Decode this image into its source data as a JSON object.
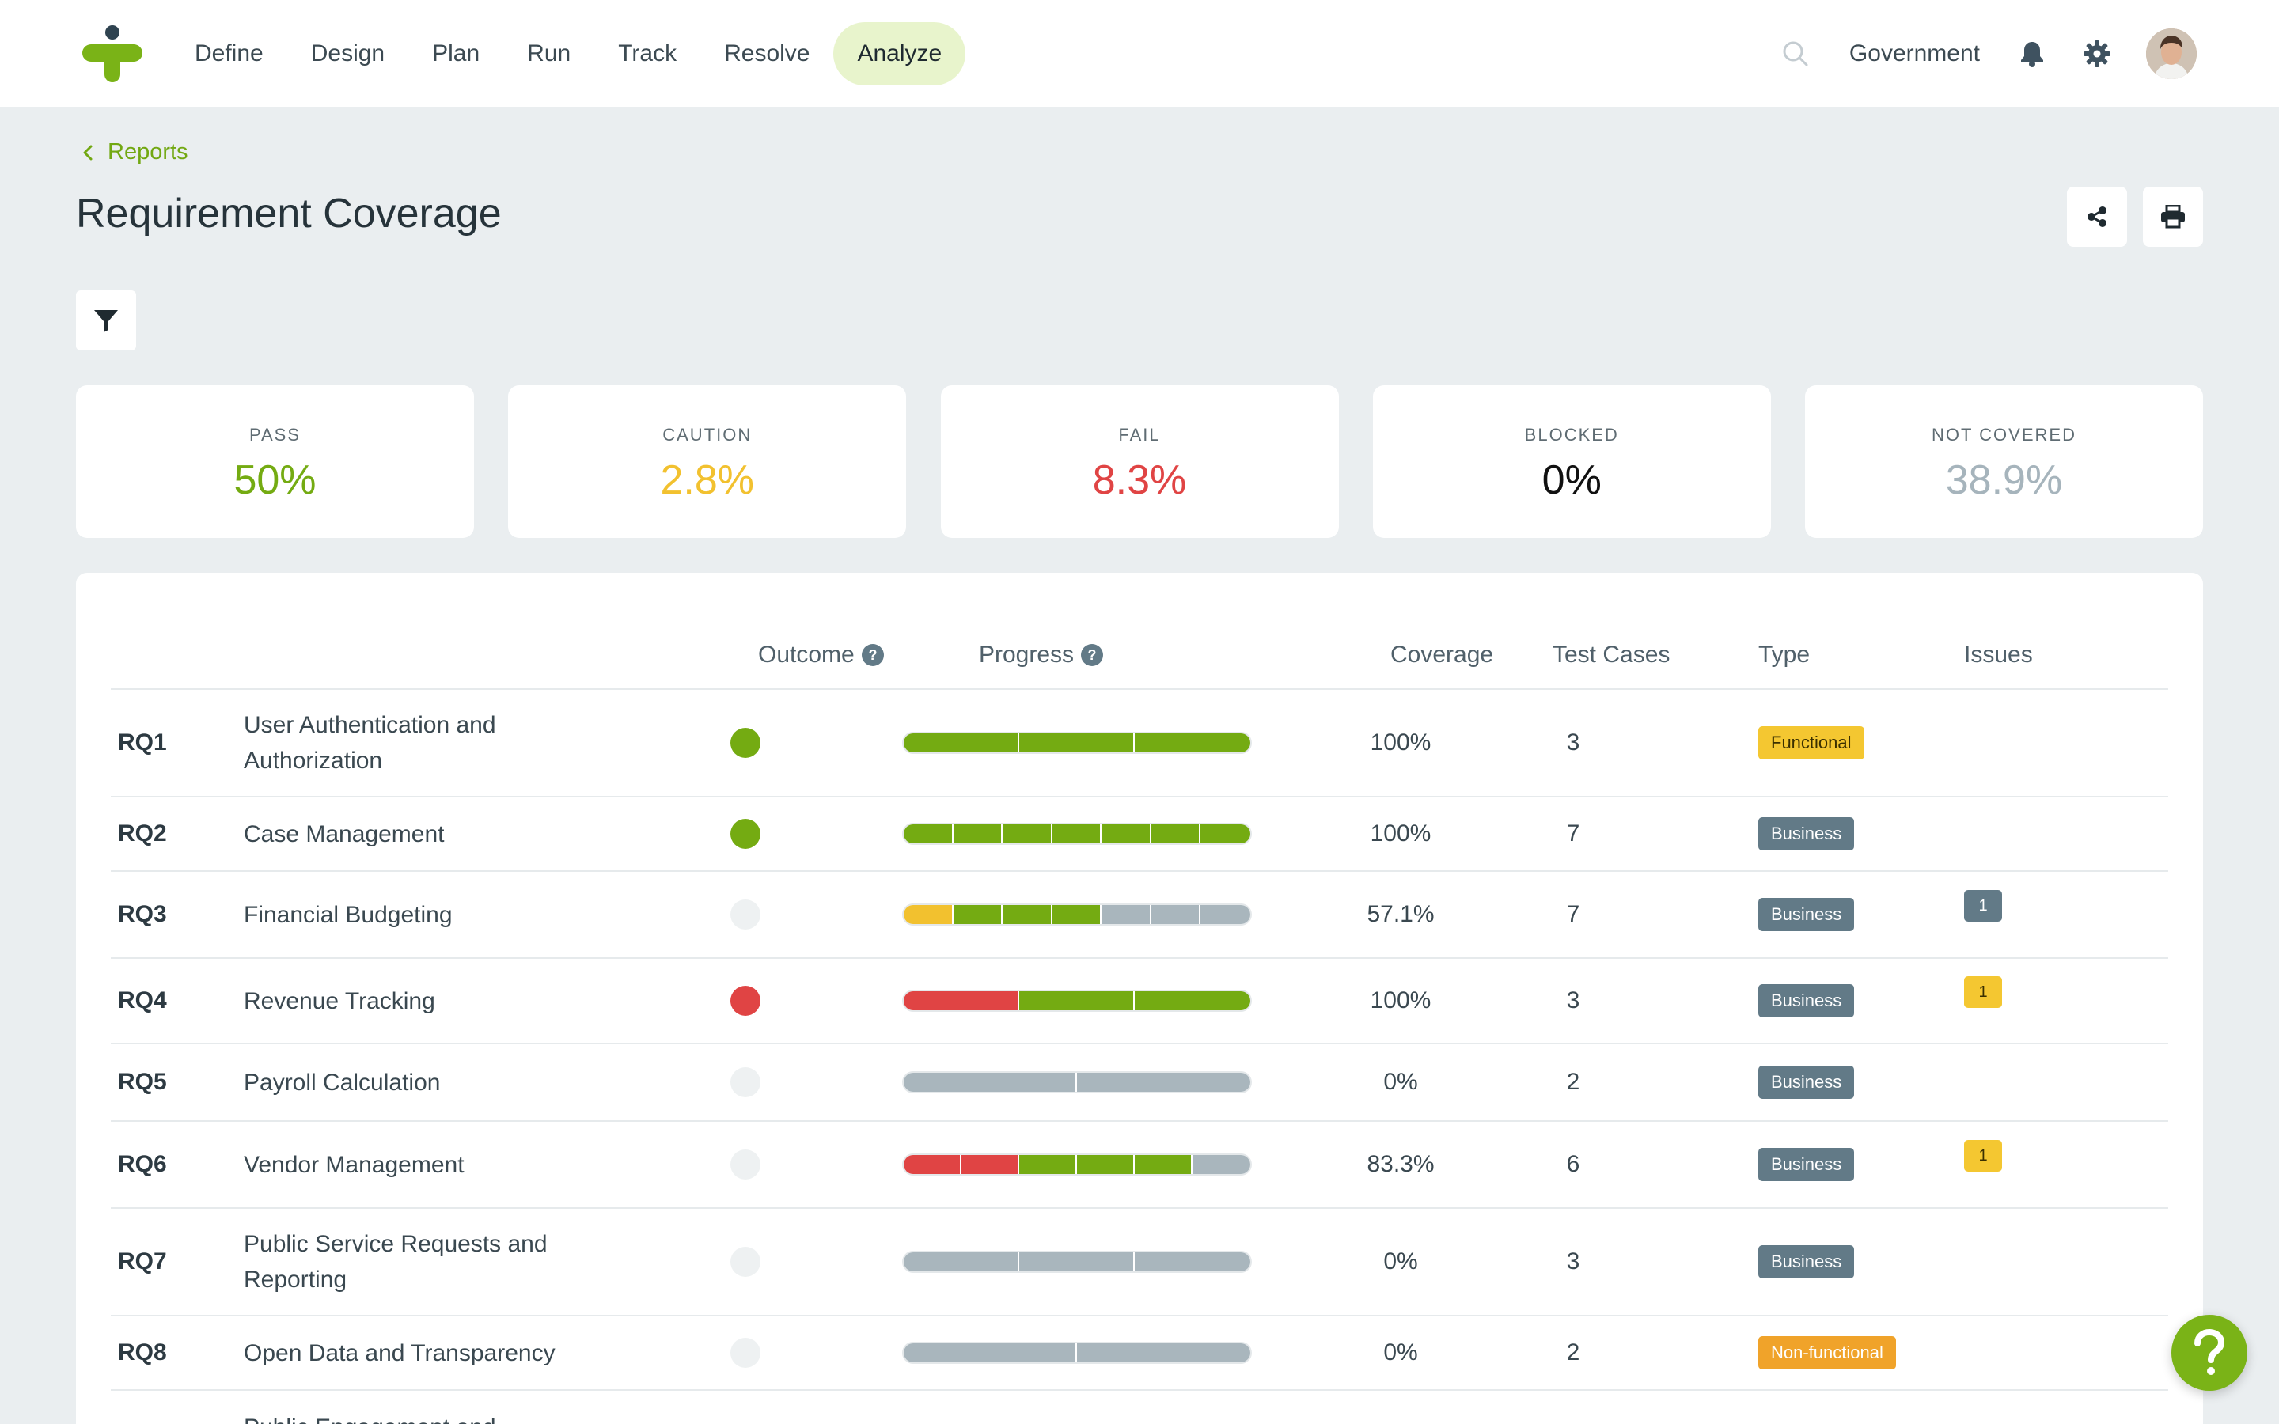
{
  "nav": {
    "items": [
      {
        "label": "Define",
        "active": false
      },
      {
        "label": "Design",
        "active": false
      },
      {
        "label": "Plan",
        "active": false
      },
      {
        "label": "Run",
        "active": false
      },
      {
        "label": "Track",
        "active": false
      },
      {
        "label": "Resolve",
        "active": false
      },
      {
        "label": "Analyze",
        "active": true
      }
    ],
    "workspace": "Government"
  },
  "header": {
    "breadcrumb": "Reports",
    "title": "Requirement Coverage"
  },
  "stats": [
    {
      "label": "PASS",
      "value": "50%",
      "color": "#74ab12"
    },
    {
      "label": "CAUTION",
      "value": "2.8%",
      "color": "#f2c12f"
    },
    {
      "label": "FAIL",
      "value": "8.3%",
      "color": "#e04444"
    },
    {
      "label": "BLOCKED",
      "value": "0%",
      "color": "#111111"
    },
    {
      "label": "NOT COVERED",
      "value": "38.9%",
      "color": "#a6b4bc"
    }
  ],
  "table": {
    "columns": {
      "outcome": "Outcome",
      "progress": "Progress",
      "coverage": "Coverage",
      "test_cases": "Test Cases",
      "type": "Type",
      "issues": "Issues"
    },
    "rows": [
      {
        "id": "RQ1",
        "name": "User Authentication and Authorization",
        "outcome": "pass",
        "progress": [
          "pass",
          "pass",
          "pass"
        ],
        "coverage": "100%",
        "test_cases": "3",
        "type": "Functional",
        "issues": ""
      },
      {
        "id": "RQ2",
        "name": "Case Management",
        "outcome": "pass",
        "progress": [
          "pass",
          "pass",
          "pass",
          "pass",
          "pass",
          "pass",
          "pass"
        ],
        "coverage": "100%",
        "test_cases": "7",
        "type": "Business",
        "issues": ""
      },
      {
        "id": "RQ3",
        "name": "Financial Budgeting",
        "outcome": "none",
        "progress": [
          "caution",
          "pass",
          "pass",
          "pass",
          "none",
          "none",
          "none"
        ],
        "coverage": "57.1%",
        "test_cases": "7",
        "type": "Business",
        "issues": "1",
        "issue_style": "gray"
      },
      {
        "id": "RQ4",
        "name": "Revenue Tracking",
        "outcome": "fail",
        "progress": [
          "fail",
          "pass",
          "pass"
        ],
        "coverage": "100%",
        "test_cases": "3",
        "type": "Business",
        "issues": "1",
        "issue_style": "yellow"
      },
      {
        "id": "RQ5",
        "name": "Payroll Calculation",
        "outcome": "none",
        "progress": [
          "none",
          "none"
        ],
        "coverage": "0%",
        "test_cases": "2",
        "type": "Business",
        "issues": ""
      },
      {
        "id": "RQ6",
        "name": "Vendor Management",
        "outcome": "none",
        "progress": [
          "fail",
          "fail",
          "pass",
          "pass",
          "pass",
          "none"
        ],
        "coverage": "83.3%",
        "test_cases": "6",
        "type": "Business",
        "issues": "1",
        "issue_style": "yellow"
      },
      {
        "id": "RQ7",
        "name": "Public Service Requests and Reporting",
        "outcome": "none",
        "progress": [
          "none",
          "none",
          "none"
        ],
        "coverage": "0%",
        "test_cases": "3",
        "type": "Business",
        "issues": ""
      },
      {
        "id": "RQ8",
        "name": "Open Data and Transparency",
        "outcome": "none",
        "progress": [
          "none",
          "none"
        ],
        "coverage": "0%",
        "test_cases": "2",
        "type": "Non-functional",
        "issues": ""
      },
      {
        "id": "",
        "name": "Public Engagement and",
        "outcome": "hidden",
        "progress": [],
        "coverage": "",
        "test_cases": "",
        "type": "",
        "issues": ""
      }
    ]
  },
  "colors": {
    "pass": "#74ab12",
    "caution": "#f2c12f",
    "fail": "#e04444",
    "none": "#a9b6bd",
    "dot_none": "#eef1f2",
    "badge_functional": "#f4c731",
    "badge_business": "#627a87",
    "badge_nonfunctional": "#f0a32a",
    "accent": "#7ab317"
  }
}
